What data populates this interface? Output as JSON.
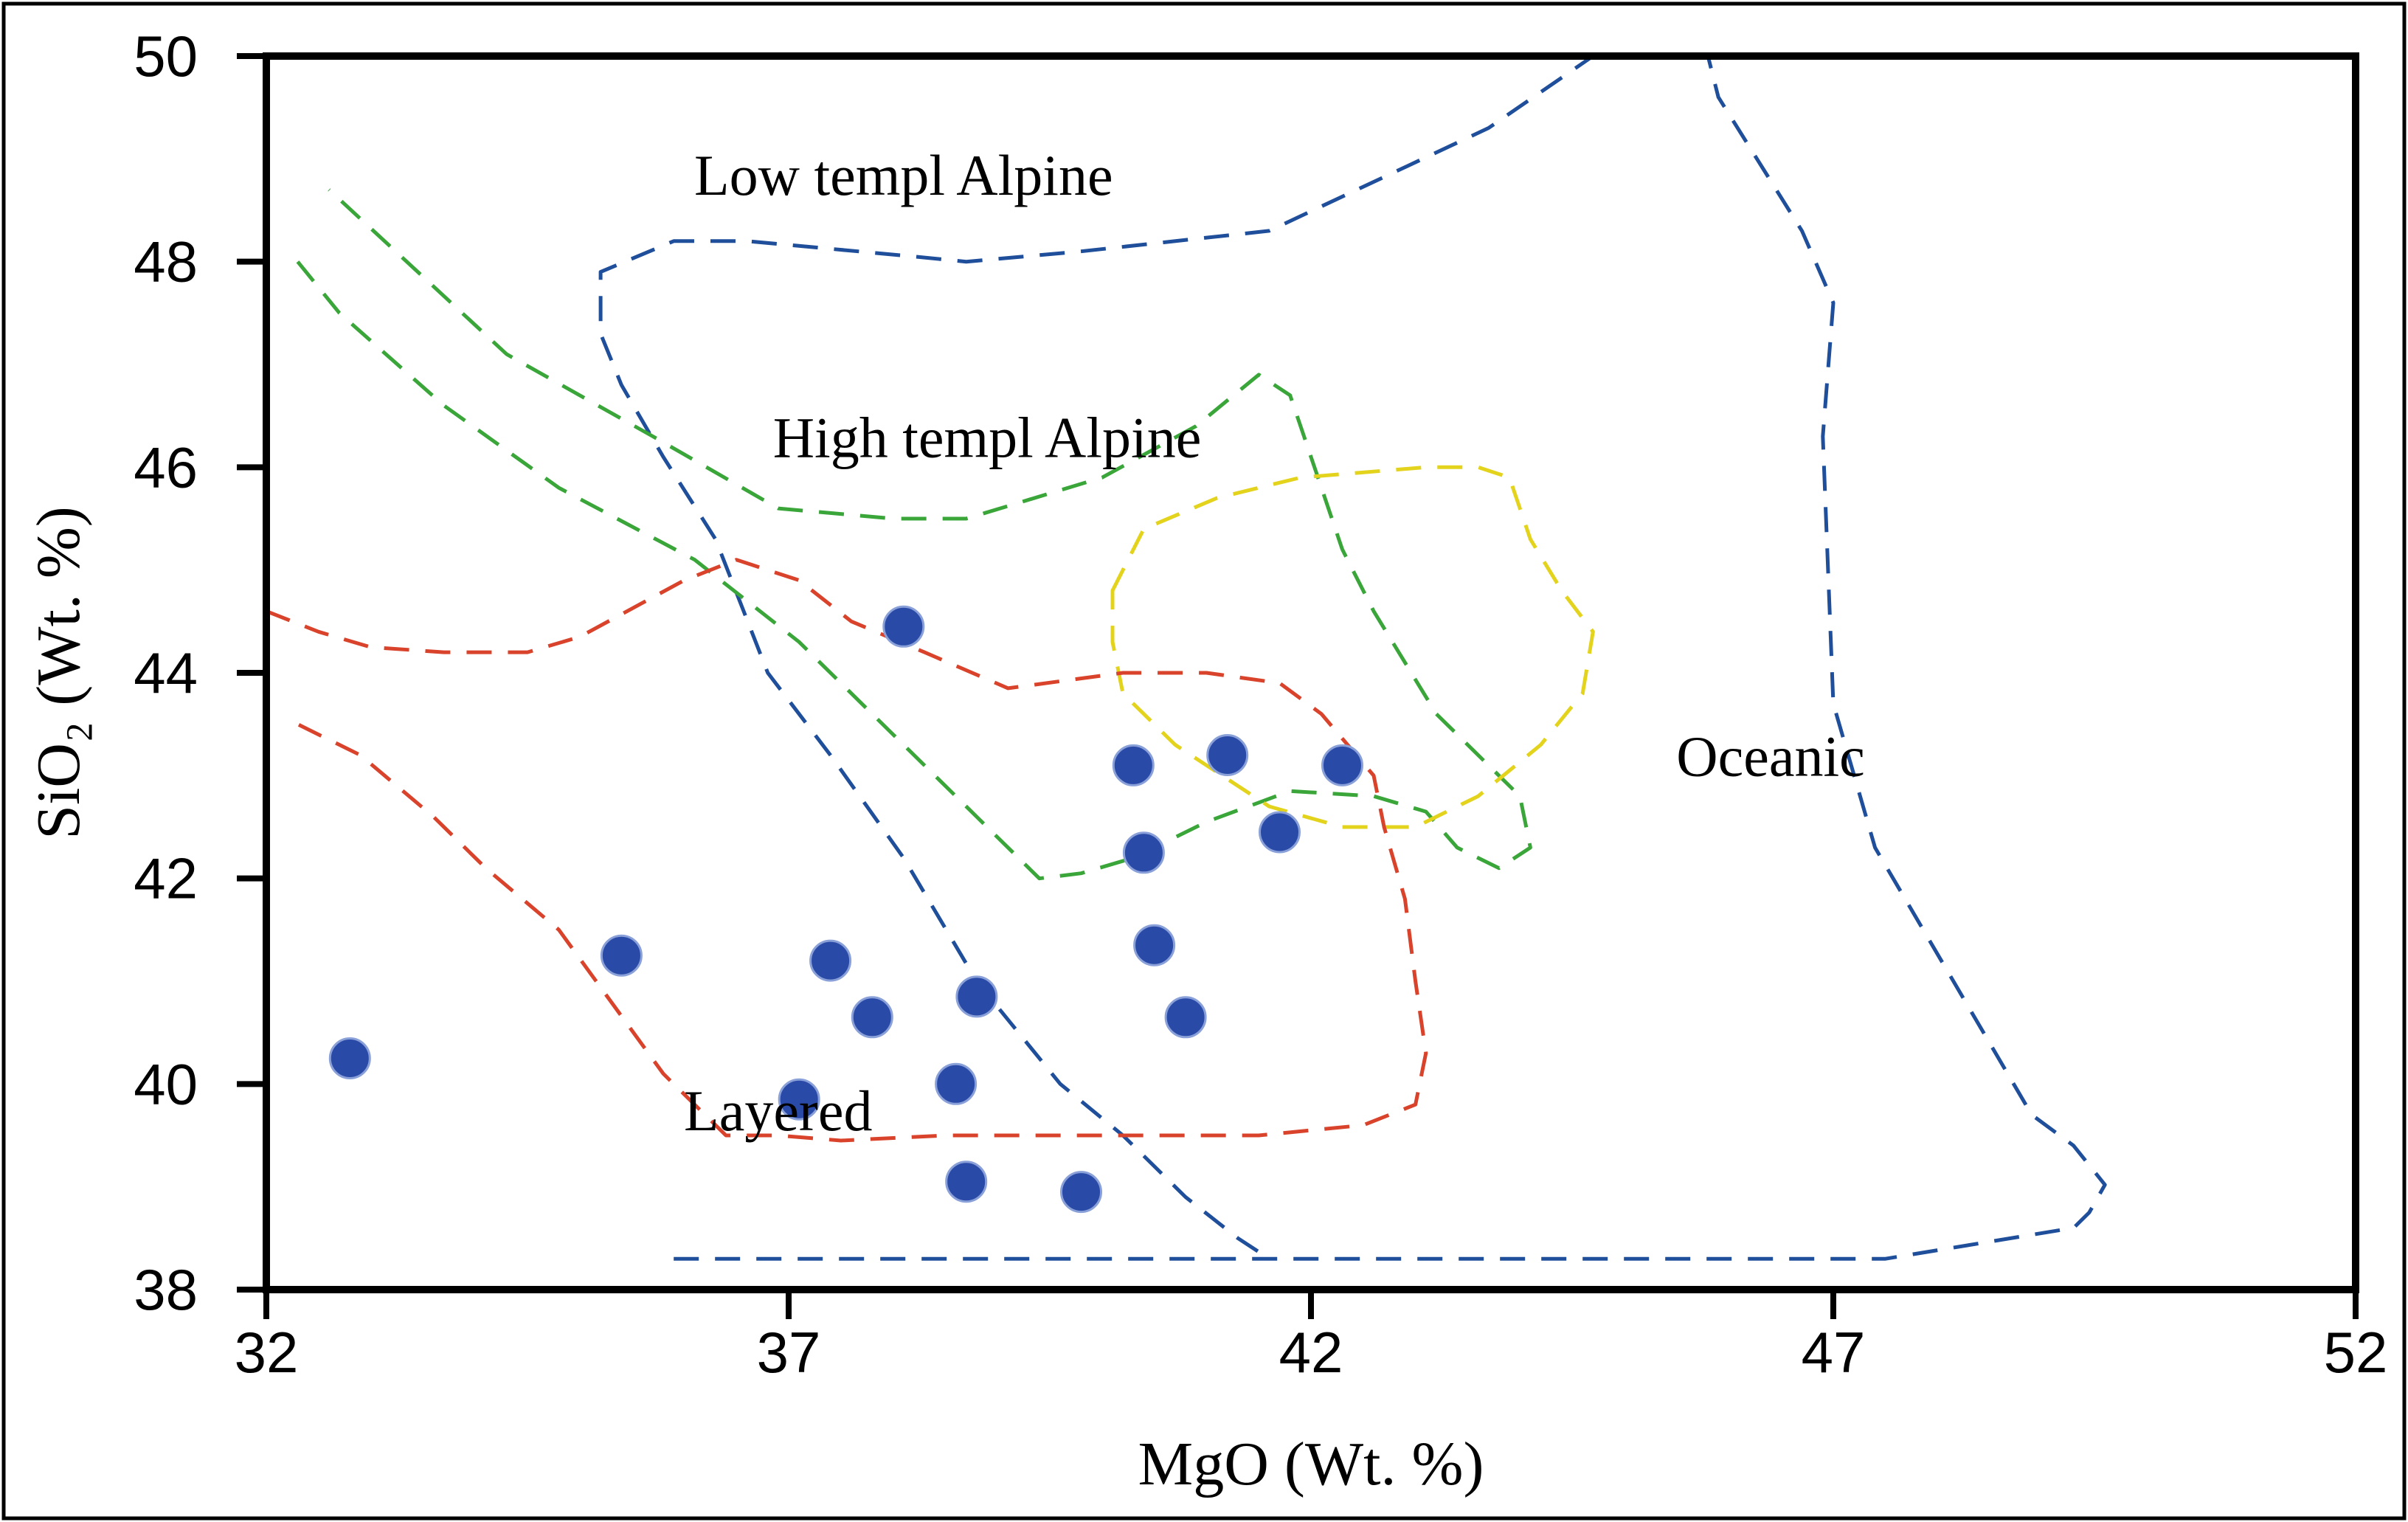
{
  "chart_data": {
    "type": "scatter",
    "title": "",
    "xlabel": "MgO (Wt. %)",
    "ylabel": "SiO₂ (Wt. %)",
    "xlim": [
      32,
      52
    ],
    "ylim": [
      38,
      50
    ],
    "xticks": [
      32,
      37,
      42,
      47,
      52
    ],
    "yticks": [
      38,
      40,
      42,
      44,
      46,
      48,
      50
    ],
    "grid": false,
    "colors": {
      "points": "#2a4aa8",
      "low_alpine": "#1f4e9a",
      "high_alpine": "#3aa63a",
      "oceanic": "#e3d31c",
      "layered": "#d9432b"
    },
    "series": [
      {
        "name": "Samples",
        "points": [
          [
            32.8,
            40.25
          ],
          [
            38.1,
            44.45
          ],
          [
            35.4,
            41.25
          ],
          [
            37.4,
            41.2
          ],
          [
            37.8,
            40.65
          ],
          [
            37.1,
            39.85
          ],
          [
            38.8,
            40.85
          ],
          [
            38.6,
            40.0
          ],
          [
            38.7,
            39.05
          ],
          [
            39.8,
            38.95
          ],
          [
            40.3,
            43.1
          ],
          [
            40.4,
            42.25
          ],
          [
            40.5,
            41.35
          ],
          [
            40.8,
            40.65
          ],
          [
            41.2,
            43.2
          ],
          [
            41.7,
            42.45
          ],
          [
            42.3,
            43.1
          ]
        ]
      }
    ],
    "regions": [
      {
        "name": "Low templ Alpine",
        "label": "Low templ Alpine",
        "color": "#1f4e9a",
        "closed": false,
        "points": [
          [
            35.9,
            38.3
          ],
          [
            47.5,
            38.3
          ],
          [
            49.3,
            38.6
          ],
          [
            49.45,
            38.75
          ],
          [
            49.6,
            39.02
          ],
          [
            49.3,
            39.4
          ],
          [
            48.9,
            39.7
          ],
          [
            47.4,
            42.3
          ],
          [
            47.0,
            43.7
          ],
          [
            46.9,
            46.3
          ],
          [
            47.0,
            47.6
          ],
          [
            46.7,
            48.3
          ],
          [
            45.9,
            49.6
          ],
          [
            45.8,
            50.0
          ],
          [
            44.7,
            50.0
          ],
          [
            43.7,
            49.3
          ],
          [
            41.6,
            48.3
          ],
          [
            39.8,
            48.1
          ],
          [
            38.7,
            48.0
          ],
          [
            38.2,
            48.05
          ],
          [
            36.6,
            48.2
          ],
          [
            35.9,
            48.2
          ],
          [
            35.2,
            47.9
          ],
          [
            35.2,
            47.8
          ],
          [
            35.2,
            47.3
          ],
          [
            35.4,
            46.8
          ],
          [
            35.8,
            46.1
          ],
          [
            36.3,
            45.3
          ],
          [
            36.8,
            44.0
          ],
          [
            37.4,
            43.2
          ],
          [
            38.1,
            42.2
          ],
          [
            38.8,
            41.0
          ],
          [
            39.6,
            40.0
          ],
          [
            40.2,
            39.5
          ],
          [
            40.8,
            38.9
          ],
          [
            41.3,
            38.5
          ],
          [
            41.6,
            38.3
          ]
        ]
      },
      {
        "name": "High templ Alpine (outer)",
        "label": "High templ Alpine",
        "color": "#3aa63a",
        "closed": false,
        "points": [
          [
            32.3,
            48.0
          ],
          [
            32.7,
            47.5
          ],
          [
            33.7,
            46.6
          ],
          [
            34.8,
            45.8
          ],
          [
            36.1,
            45.1
          ],
          [
            37.1,
            44.3
          ],
          [
            38.0,
            43.4
          ],
          [
            38.8,
            42.6
          ],
          [
            39.4,
            42.0
          ],
          [
            39.8,
            42.05
          ],
          [
            40.3,
            42.2
          ],
          [
            41.0,
            42.55
          ],
          [
            41.8,
            42.85
          ],
          [
            42.6,
            42.8
          ],
          [
            43.1,
            42.65
          ],
          [
            43.4,
            42.3
          ],
          [
            43.8,
            42.1
          ],
          [
            44.1,
            42.3
          ],
          [
            44.0,
            42.8
          ],
          [
            43.2,
            43.6
          ],
          [
            42.6,
            44.6
          ],
          [
            42.3,
            45.2
          ],
          [
            42.1,
            45.8
          ],
          [
            41.8,
            46.7
          ],
          [
            41.5,
            46.9
          ],
          [
            40.9,
            46.4
          ],
          [
            40.0,
            45.9
          ],
          [
            38.7,
            45.5
          ],
          [
            38.0,
            45.5
          ],
          [
            36.9,
            45.6
          ],
          [
            35.7,
            46.3
          ],
          [
            34.3,
            47.1
          ],
          [
            32.6,
            48.7
          ]
        ]
      },
      {
        "name": "Oceanic",
        "label": "Oceanic",
        "color": "#e3d31c",
        "closed": true,
        "points": [
          [
            40.1,
            44.8
          ],
          [
            40.4,
            45.4
          ],
          [
            41.1,
            45.7
          ],
          [
            41.9,
            45.9
          ],
          [
            43.1,
            46.0
          ],
          [
            43.6,
            46.0
          ],
          [
            43.9,
            45.9
          ],
          [
            44.1,
            45.3
          ],
          [
            44.4,
            44.8
          ],
          [
            44.7,
            44.4
          ],
          [
            44.6,
            43.8
          ],
          [
            44.2,
            43.3
          ],
          [
            43.6,
            42.8
          ],
          [
            43.0,
            42.5
          ],
          [
            42.3,
            42.5
          ],
          [
            41.6,
            42.7
          ],
          [
            40.7,
            43.3
          ],
          [
            40.2,
            43.8
          ],
          [
            40.1,
            44.3
          ]
        ]
      },
      {
        "name": "Layered",
        "label": "Layered",
        "color": "#d9432b",
        "closed": false,
        "points": [
          [
            32.0,
            44.6
          ],
          [
            32.5,
            44.4
          ],
          [
            33.0,
            44.25
          ],
          [
            33.7,
            44.2
          ],
          [
            34.5,
            44.2
          ],
          [
            35.0,
            44.35
          ],
          [
            36.0,
            44.9
          ],
          [
            36.5,
            45.1
          ],
          [
            37.1,
            44.9
          ],
          [
            37.6,
            44.5
          ],
          [
            38.3,
            44.2
          ],
          [
            39.1,
            43.85
          ],
          [
            40.2,
            44.0
          ],
          [
            41.0,
            44.0
          ],
          [
            41.7,
            43.9
          ],
          [
            42.1,
            43.6
          ],
          [
            42.6,
            43.0
          ],
          [
            42.7,
            42.5
          ],
          [
            42.9,
            41.8
          ],
          [
            43.0,
            41.0
          ],
          [
            43.1,
            40.3
          ],
          [
            43.0,
            39.8
          ],
          [
            42.5,
            39.6
          ],
          [
            41.5,
            39.5
          ],
          [
            40.2,
            39.5
          ],
          [
            38.5,
            39.5
          ],
          [
            37.5,
            39.45
          ],
          [
            36.9,
            39.5
          ],
          [
            36.4,
            39.5
          ],
          [
            35.8,
            40.1
          ],
          [
            35.3,
            40.8
          ],
          [
            34.8,
            41.5
          ],
          [
            34.1,
            42.1
          ],
          [
            33.6,
            42.6
          ],
          [
            32.9,
            43.2
          ],
          [
            32.3,
            43.5
          ]
        ]
      }
    ],
    "annotations": [
      {
        "text": "Low templ Alpine",
        "x": 38.1,
        "y": 48.65
      },
      {
        "text": "High templ Alpine",
        "x": 38.9,
        "y": 46.1
      },
      {
        "text": "Oceanic",
        "x": 46.4,
        "y": 43.0
      },
      {
        "text": "Layered",
        "x": 36.9,
        "y": 39.55
      }
    ]
  }
}
